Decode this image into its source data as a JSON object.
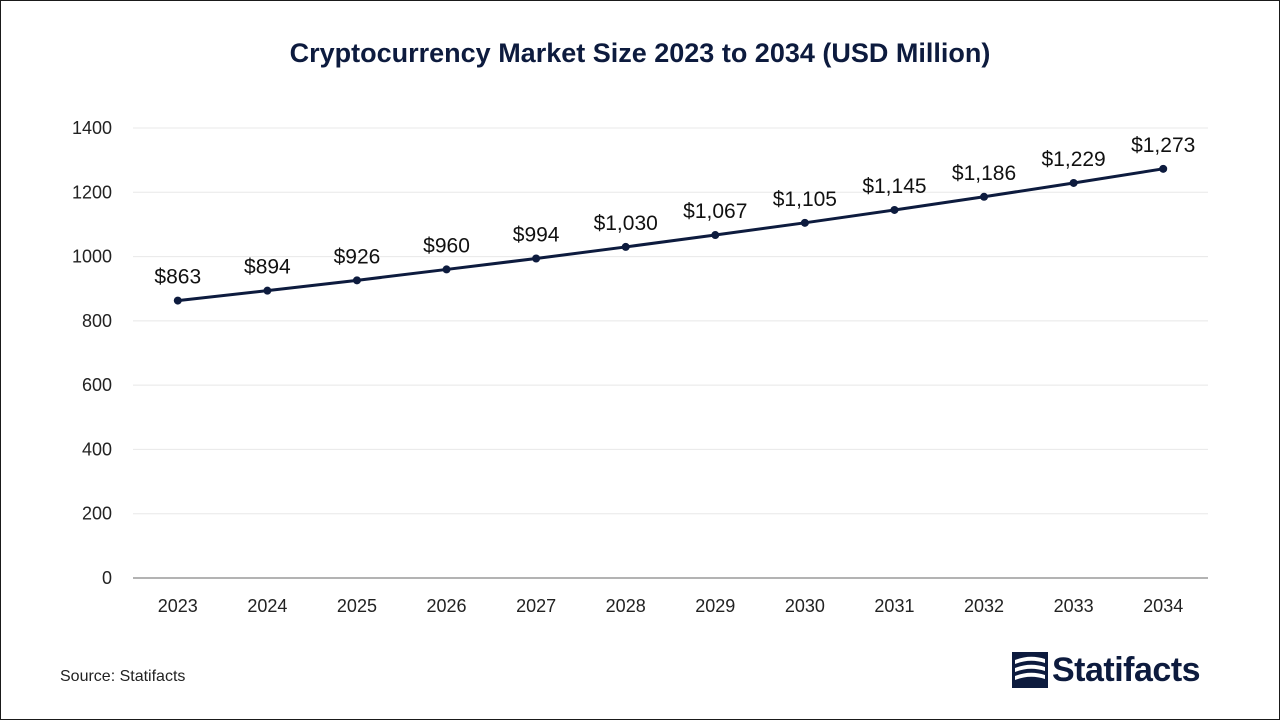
{
  "title": "Cryptocurrency Market Size 2023 to 2034 (USD Million)",
  "source": "Source: Statifacts",
  "brand": "Statifacts",
  "colors": {
    "line": "#0d1b3e",
    "grid": "#e8e8e8",
    "axis": "#9a9a9a",
    "text": "#222222"
  },
  "chart_data": {
    "type": "line",
    "title": "Cryptocurrency Market Size 2023 to 2034 (USD Million)",
    "xlabel": "",
    "ylabel": "",
    "categories": [
      "2023",
      "2024",
      "2025",
      "2026",
      "2027",
      "2028",
      "2029",
      "2030",
      "2031",
      "2032",
      "2033",
      "2034"
    ],
    "values": [
      863,
      894,
      926,
      960,
      994,
      1030,
      1067,
      1105,
      1145,
      1186,
      1229,
      1273
    ],
    "data_labels": [
      "$863",
      "$894",
      "$926",
      "$960",
      "$994",
      "$1,030",
      "$1,067",
      "$1,105",
      "$1,145",
      "$1,186",
      "$1,229",
      "$1,273"
    ],
    "ylim": [
      0,
      1400
    ],
    "yticks": [
      0,
      200,
      400,
      600,
      800,
      1000,
      1200,
      1400
    ],
    "grid": true,
    "legend": "none",
    "markers": true
  }
}
